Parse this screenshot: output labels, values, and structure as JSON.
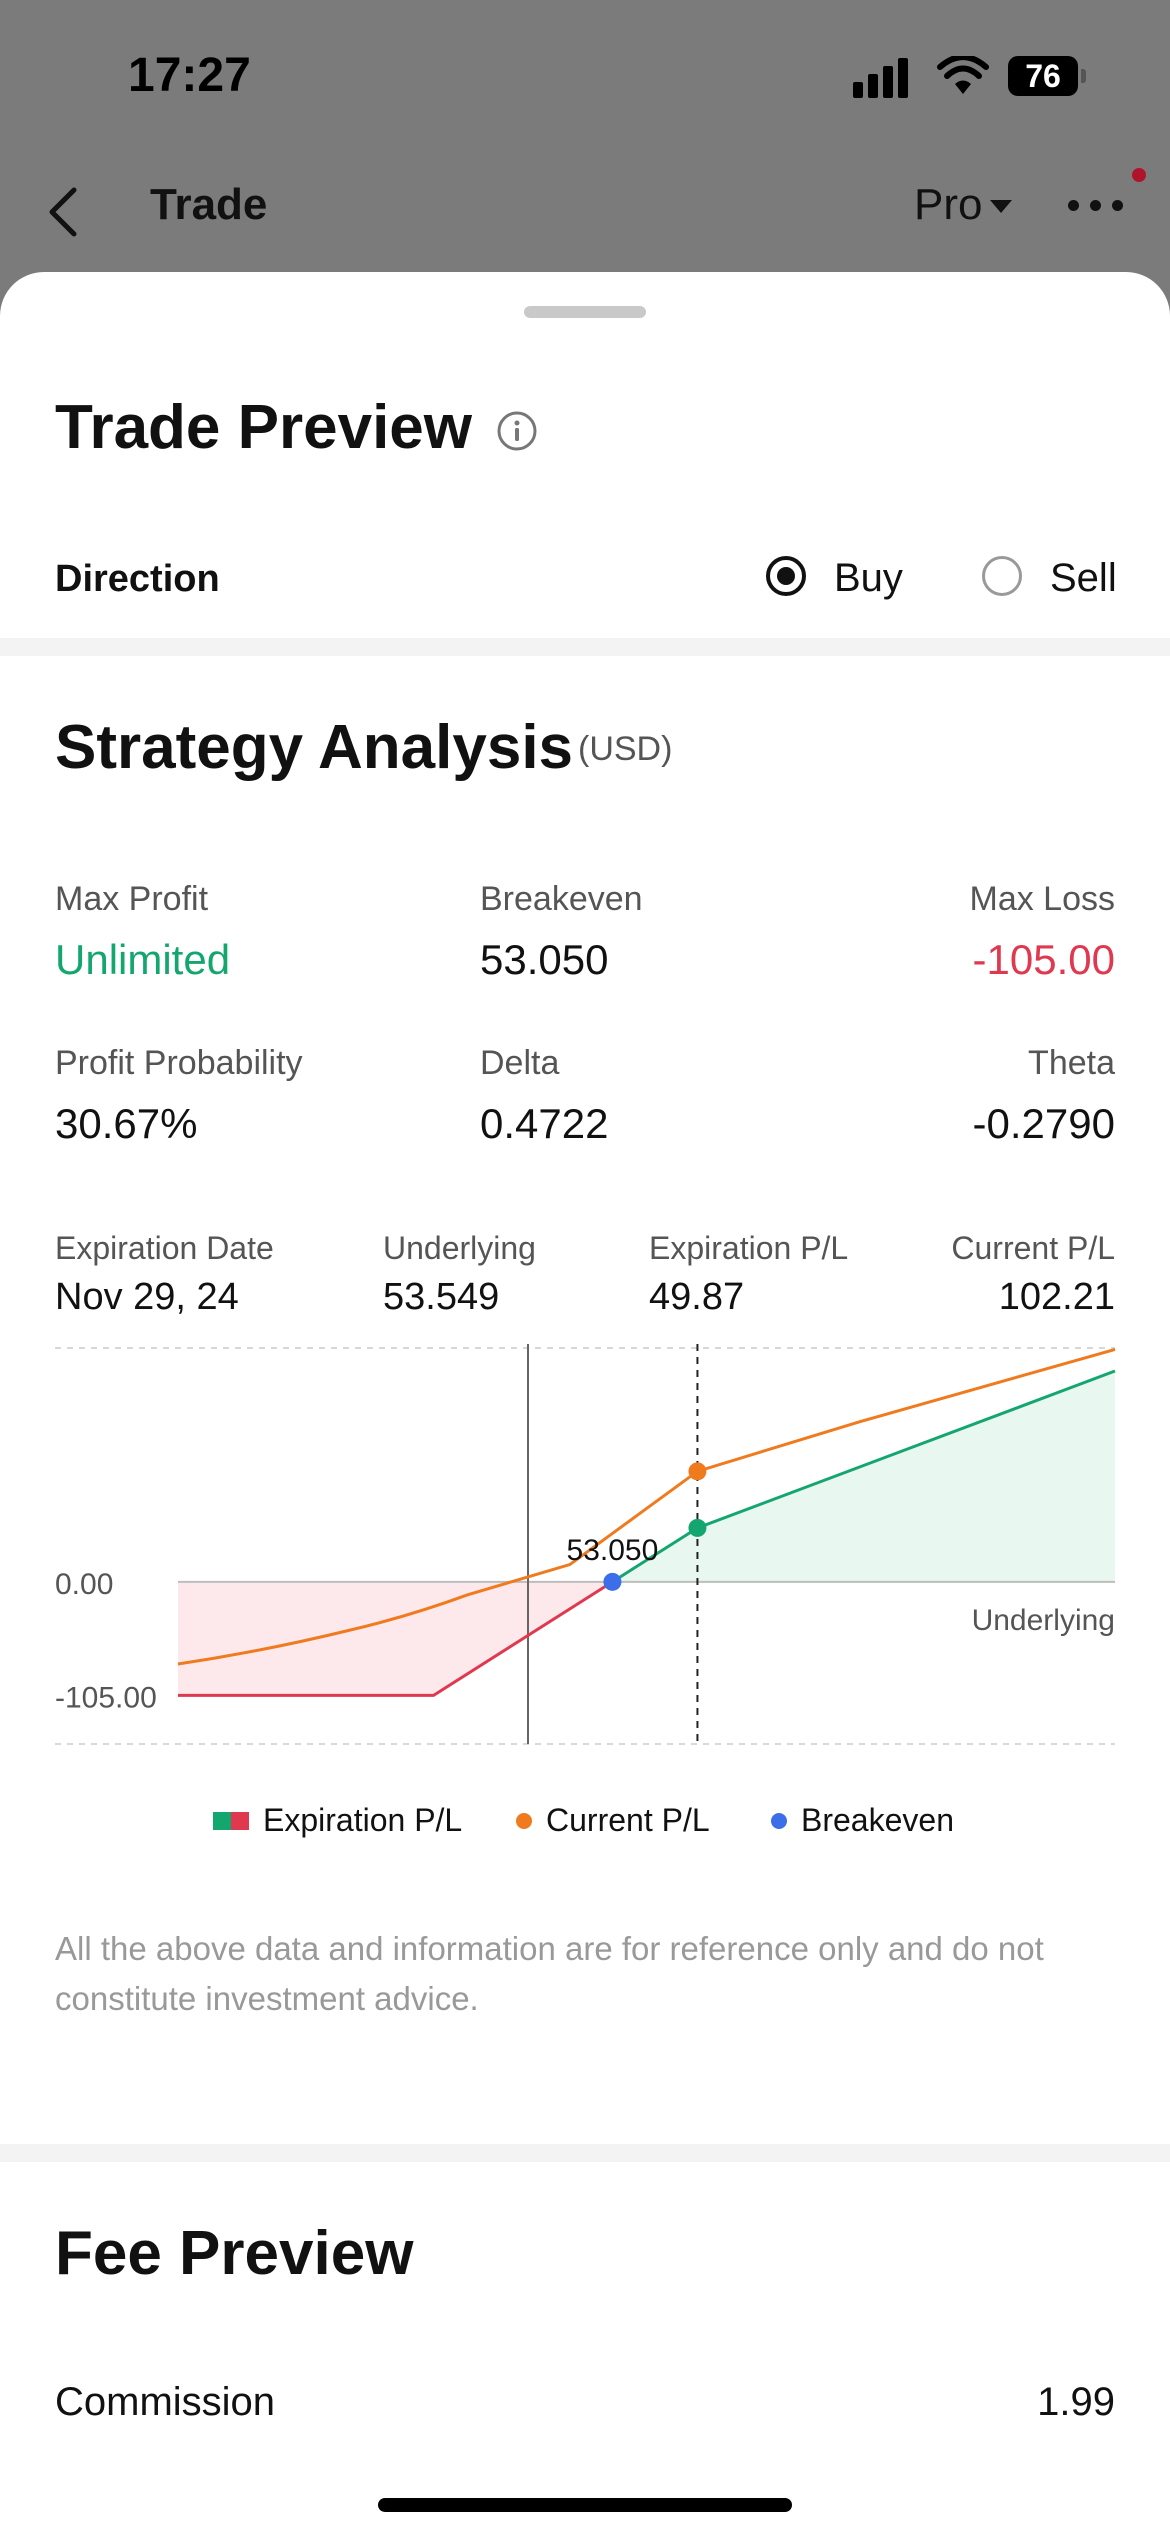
{
  "status": {
    "time": "17:27",
    "battery": "76"
  },
  "nav": {
    "title": "Trade",
    "mode": "Pro"
  },
  "trade_preview": {
    "title": "Trade Preview",
    "direction_label": "Direction",
    "options": [
      "Buy",
      "Sell"
    ],
    "selected": "Buy"
  },
  "strategy": {
    "title": "Strategy Analysis",
    "currency": "(USD)",
    "metrics": {
      "max_profit": {
        "label": "Max Profit",
        "value": "Unlimited"
      },
      "breakeven": {
        "label": "Breakeven",
        "value": "53.050"
      },
      "max_loss": {
        "label": "Max Loss",
        "value": "-105.00"
      },
      "profit_probability": {
        "label": "Profit Probability",
        "value": "30.67%"
      },
      "delta": {
        "label": "Delta",
        "value": "0.4722"
      },
      "theta": {
        "label": "Theta",
        "value": "-0.2790"
      }
    },
    "details": {
      "expiration_date": {
        "label": "Expiration Date",
        "value": "Nov 29, 24"
      },
      "underlying": {
        "label": "Underlying",
        "value": "53.549"
      },
      "expiration_pl": {
        "label": "Expiration P/L",
        "value": "49.87"
      },
      "current_pl": {
        "label": "Current P/L",
        "value": "102.21"
      }
    },
    "legend": [
      "Expiration P/L",
      "Current P/L",
      "Breakeven"
    ],
    "disclaimer": "All the above data and information are for reference only and do not constitute investment advice."
  },
  "chart_data": {
    "type": "line",
    "xlabel": "Underlying",
    "y_ticks": [
      "0.00",
      "-105.00"
    ],
    "breakeven_label": "53.050",
    "breakeven": 53.05,
    "current_underlying": 53.549,
    "x_range": [
      50.5,
      56.0
    ],
    "y_range": [
      -150,
      220
    ],
    "series": [
      {
        "name": "Expiration P/L",
        "x": [
          50.5,
          52.0,
          53.05,
          53.549,
          56.0
        ],
        "y": [
          -105,
          -105,
          0,
          49.87,
          195
        ]
      },
      {
        "name": "Current P/L",
        "x": [
          50.5,
          51.5,
          52.2,
          52.8,
          53.549,
          54.5,
          56.0
        ],
        "y": [
          -76,
          -45,
          -12,
          16,
          102.21,
          148,
          215
        ]
      }
    ],
    "colors": {
      "expiration_profit": "#13a66f",
      "expiration_loss": "#e0384f",
      "current": "#f07a1e",
      "breakeven": "#3b6ee8"
    }
  },
  "fee_preview": {
    "title": "Fee Preview",
    "commission_label": "Commission",
    "commission_value": "1.99"
  }
}
